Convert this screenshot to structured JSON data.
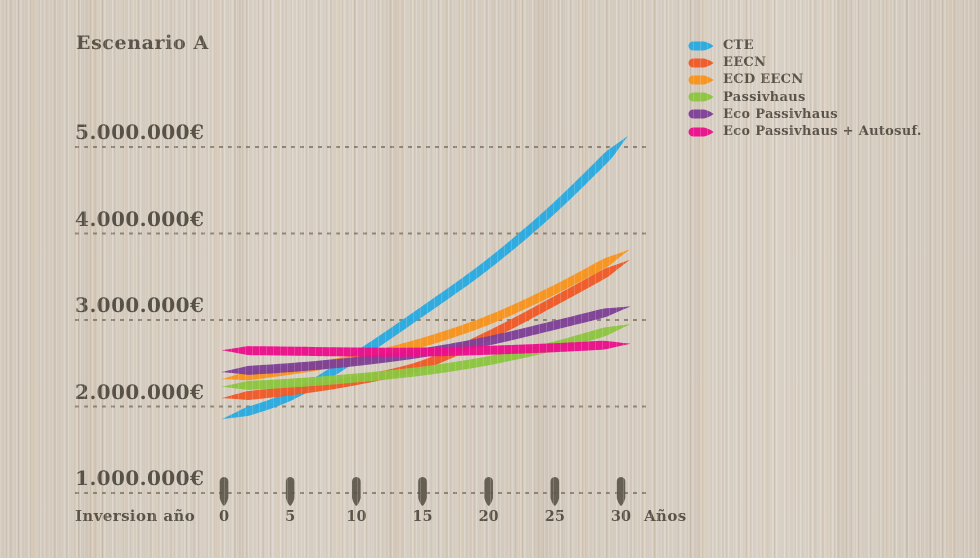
{
  "title": "Escenario A",
  "colors": {
    "background_wood": "#d8d1c6",
    "text": "#4e4940",
    "gridline": "#756a58",
    "tick_pin": "#5a5347"
  },
  "chart_data": {
    "type": "line",
    "title": "Escenario A",
    "x": [
      0,
      5,
      10,
      15,
      20,
      25,
      30
    ],
    "x_tick_labels": [
      "0",
      "5",
      "10",
      "15",
      "20",
      "25",
      "30"
    ],
    "xlabel": "Años",
    "x_left_label": "Inversion año",
    "ylim": [
      1000000,
      5200000
    ],
    "grid": "horizontal-dashed",
    "legend_position": "top-right",
    "y_ticks": [
      {
        "value": 5000000,
        "label": "5.000.000€"
      },
      {
        "value": 4000000,
        "label": "4.000.000€"
      },
      {
        "value": 3000000,
        "label": "3.000.000€"
      },
      {
        "value": 2000000,
        "label": "2.000.000€"
      },
      {
        "value": 1000000,
        "label": "1.000.000€"
      }
    ],
    "series": [
      {
        "name": "CTE",
        "color": "#29abe2",
        "values": [
          1860000,
          2120000,
          2580000,
          3100000,
          3650000,
          4300000,
          5050000
        ]
      },
      {
        "name": "EECN",
        "color": "#f05a28",
        "values": [
          2100000,
          2180000,
          2300000,
          2480000,
          2820000,
          3220000,
          3640000
        ]
      },
      {
        "name": "ECD EECN",
        "color": "#f8941d",
        "values": [
          2320000,
          2420000,
          2550000,
          2740000,
          3000000,
          3350000,
          3760000
        ]
      },
      {
        "name": "Passivhaus",
        "color": "#8dc63f",
        "values": [
          2230000,
          2270000,
          2330000,
          2410000,
          2530000,
          2700000,
          2920000
        ]
      },
      {
        "name": "Eco Passivhaus",
        "color": "#7e3f98",
        "values": [
          2400000,
          2450000,
          2520000,
          2620000,
          2760000,
          2940000,
          3130000
        ]
      },
      {
        "name": "Eco Passivhaus + Autosuf.",
        "color": "#ec0f8d",
        "values": [
          2650000,
          2640000,
          2630000,
          2630000,
          2650000,
          2680000,
          2720000
        ]
      }
    ]
  }
}
